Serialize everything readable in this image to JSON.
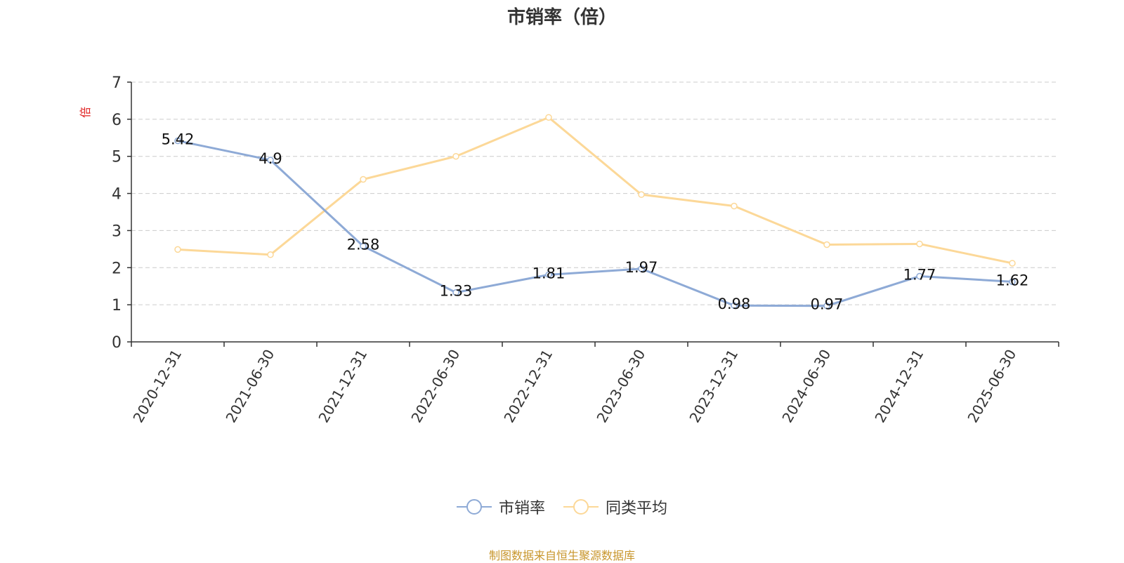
{
  "chart_data": {
    "type": "line",
    "title": "市销率（倍）",
    "ylabel": "倍",
    "ylim": [
      0,
      7
    ],
    "yticks": [
      0,
      1,
      2,
      3,
      4,
      5,
      6,
      7
    ],
    "categories": [
      "2020-12-31",
      "2021-06-30",
      "2021-12-31",
      "2022-06-30",
      "2022-12-31",
      "2023-06-30",
      "2023-12-31",
      "2024-06-30",
      "2024-12-31",
      "2025-06-30"
    ],
    "series": [
      {
        "name": "市销率",
        "color": "#8eaad6",
        "values": [
          5.42,
          4.9,
          2.58,
          1.33,
          1.81,
          1.97,
          0.98,
          0.97,
          1.77,
          1.62
        ],
        "labels": [
          "5.42",
          "4.9",
          "2.58",
          "1.33",
          "1.81",
          "1.97",
          "0.98",
          "0.97",
          "1.77",
          "1.62"
        ]
      },
      {
        "name": "同类平均",
        "color": "#fcd898",
        "values": [
          2.49,
          2.35,
          4.38,
          5.0,
          6.05,
          3.97,
          3.66,
          2.62,
          2.64,
          2.12
        ]
      }
    ],
    "grid": true,
    "legend_position": "bottom",
    "source": "制图数据来自恒生聚源数据库"
  }
}
